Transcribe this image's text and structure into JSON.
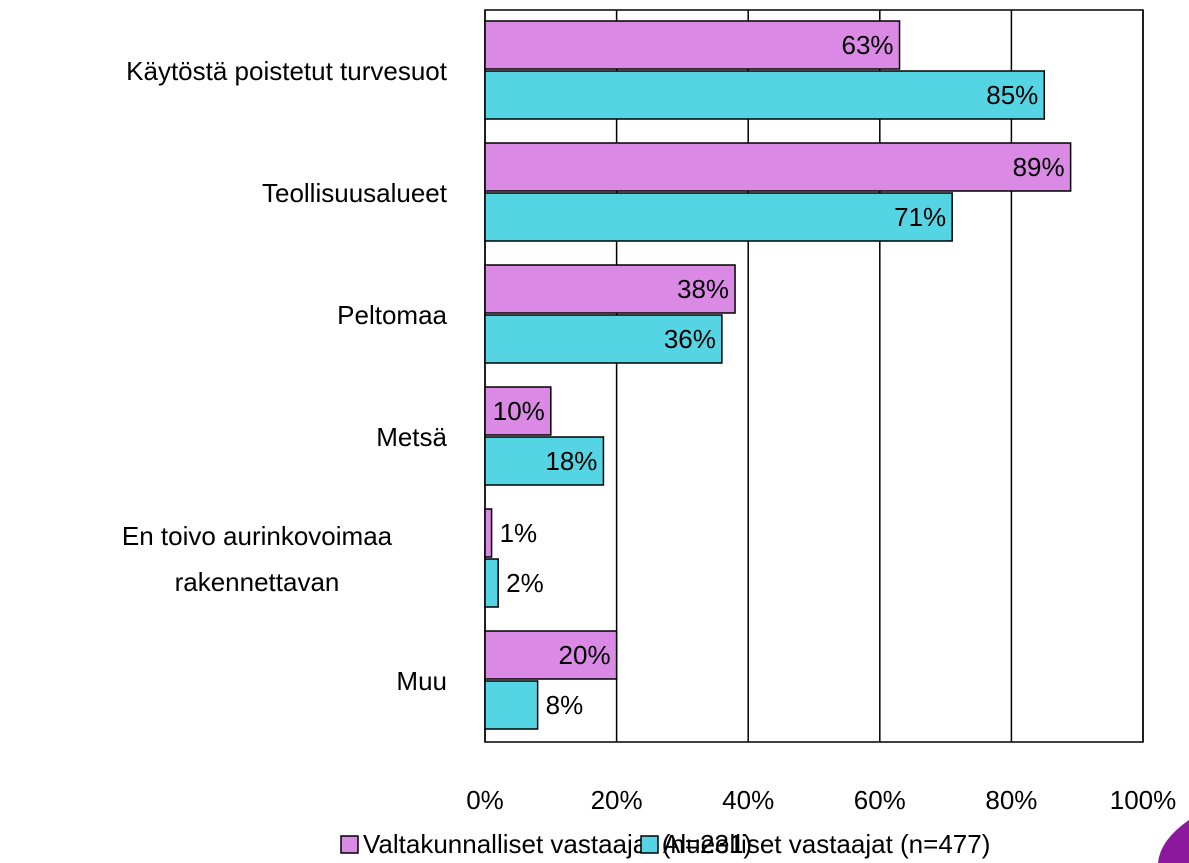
{
  "chart_data": {
    "type": "hbar",
    "categories": [
      "Käytöstä poistetut turvesuot",
      "Teollisuusalueet",
      "Peltomaa",
      "Metsä",
      "En toivo aurinkovoimaa rakennettavan",
      "Muu"
    ],
    "series": [
      {
        "name": "Valtakunnalliset vastaajat (n=231)",
        "color": "#da8ae4",
        "values": [
          63,
          89,
          38,
          10,
          1,
          20
        ],
        "value_labels": [
          "63%",
          "89%",
          "38%",
          "10%",
          "1%",
          "20%"
        ]
      },
      {
        "name": "Alueelliset vastaajat (n=477)",
        "color": "#55d5e3",
        "values": [
          85,
          71,
          36,
          18,
          2,
          8
        ],
        "value_labels": [
          "85%",
          "71%",
          "36%",
          "18%",
          "2%",
          "8%"
        ]
      }
    ],
    "xlim": [
      0,
      100
    ],
    "xticks": [
      {
        "value": 0,
        "label": "0%"
      },
      {
        "value": 20,
        "label": "20%"
      },
      {
        "value": 40,
        "label": "40%"
      },
      {
        "value": 60,
        "label": "60%"
      },
      {
        "value": 80,
        "label": "80%"
      },
      {
        "value": 100,
        "label": "100%"
      }
    ],
    "grid": true,
    "legend": "bottom"
  }
}
